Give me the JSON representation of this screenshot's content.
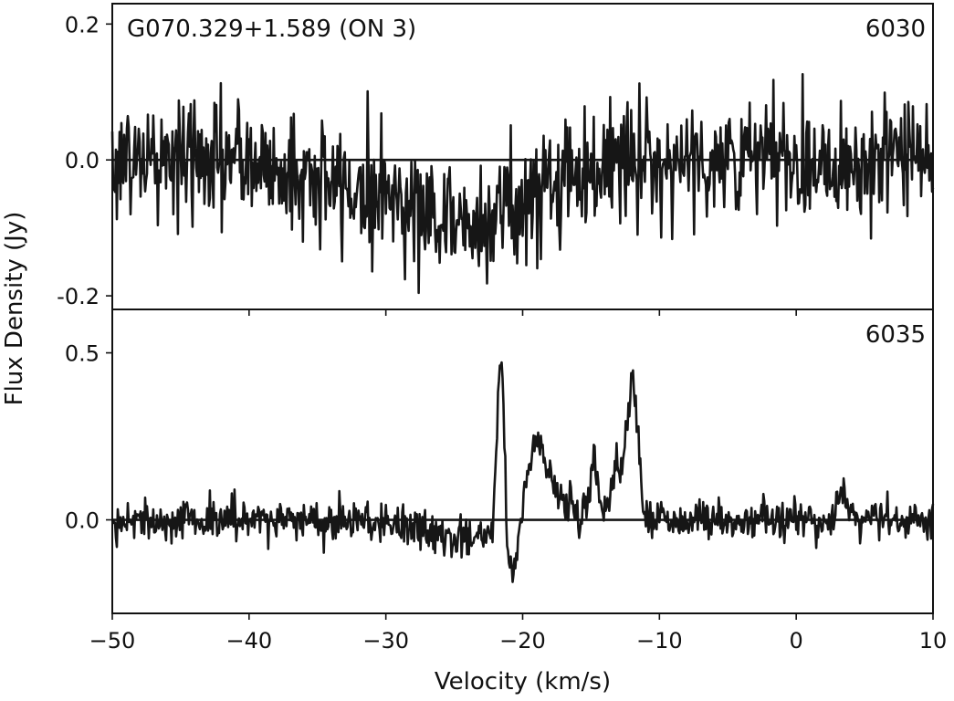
{
  "chart_data": [
    {
      "type": "line",
      "panel": "top",
      "source_label": "G070.329+1.589 (ON 3)",
      "frequency_label": "6030",
      "xlim": [
        -50,
        10
      ],
      "ylim": [
        -0.22,
        0.23
      ],
      "yticks": [
        {
          "value": 0.2,
          "label": "0.2"
        },
        {
          "value": 0.0,
          "label": "0.0"
        },
        {
          "value": -0.2,
          "label": "-0.2"
        }
      ],
      "baseline": 0.0,
      "noise_sigma": 0.045,
      "features": [
        {
          "center": -24.0,
          "width": 4.5,
          "amplitude": -0.09
        },
        {
          "center": -34.0,
          "width": 3.0,
          "amplitude": -0.03
        }
      ]
    },
    {
      "type": "line",
      "panel": "bottom",
      "frequency_label": "6035",
      "xlim": [
        -50,
        10
      ],
      "ylim": [
        -0.28,
        0.63
      ],
      "yticks": [
        {
          "value": 0.5,
          "label": "0.5"
        },
        {
          "value": 0.0,
          "label": "0.0"
        }
      ],
      "baseline": 0.0,
      "noise_sigma": 0.03,
      "features": [
        {
          "center": -21.6,
          "width": 0.25,
          "amplitude": 0.58
        },
        {
          "center": -19.2,
          "width": 0.6,
          "amplitude": 0.19
        },
        {
          "center": -18.5,
          "width": 0.6,
          "amplitude": 0.12
        },
        {
          "center": -17.0,
          "width": 0.8,
          "amplitude": 0.06
        },
        {
          "center": -14.8,
          "width": 0.25,
          "amplitude": 0.19
        },
        {
          "center": -13.2,
          "width": 0.6,
          "amplitude": 0.1
        },
        {
          "center": -11.9,
          "width": 0.35,
          "amplitude": 0.37
        },
        {
          "center": -12.5,
          "width": 0.5,
          "amplitude": 0.1
        },
        {
          "center": -20.8,
          "width": 0.5,
          "amplitude": -0.12
        },
        {
          "center": -24.0,
          "width": 3.0,
          "amplitude": -0.06
        },
        {
          "center": 3.3,
          "width": 0.3,
          "amplitude": 0.1
        }
      ]
    }
  ],
  "xaxis": {
    "label": "Velocity (km/s)",
    "ticks": [
      {
        "value": -50,
        "label": "−50"
      },
      {
        "value": -40,
        "label": "−40"
      },
      {
        "value": -30,
        "label": "−30"
      },
      {
        "value": -20,
        "label": "−20"
      },
      {
        "value": -10,
        "label": "−10"
      },
      {
        "value": 0,
        "label": "0"
      },
      {
        "value": 10,
        "label": "10"
      }
    ]
  },
  "yaxis": {
    "label": "Flux Density (Jy)"
  }
}
